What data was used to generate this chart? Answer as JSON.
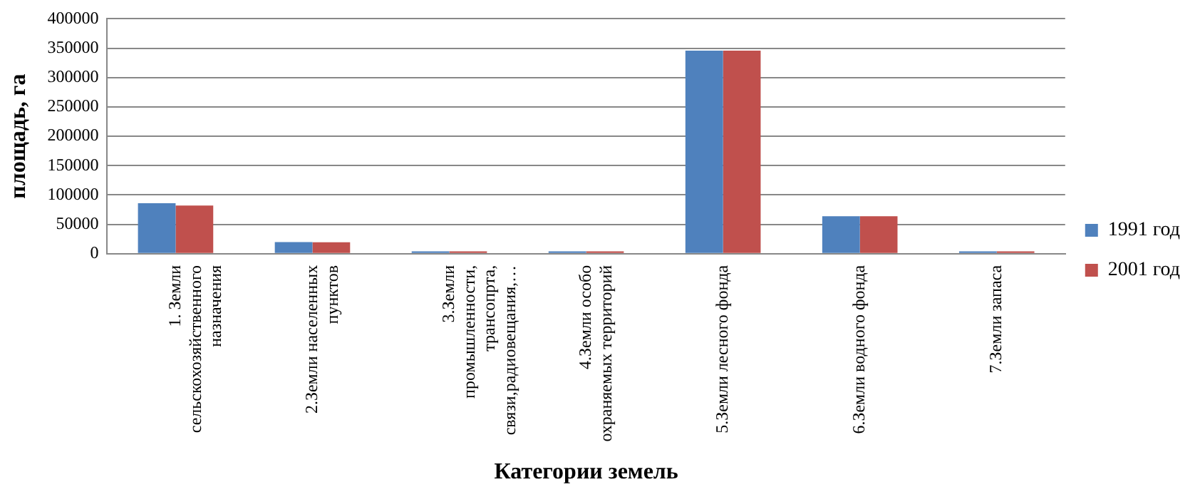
{
  "chart_data": {
    "type": "bar",
    "xlabel": "Категории земель",
    "ylabel": "площадь, га",
    "categories": [
      "1. Земли сельскохозяйственного назначения",
      "2.Земли населенных пунктов",
      "3.Земли промышленности, трансопрта, связи,радиовещания,…",
      "4.Земли особо охраняемых территорий",
      "5.Земли лесного фонда",
      "6.Земли водного фонда",
      "7.Земли запаса"
    ],
    "series": [
      {
        "name": "1991 год",
        "color": "#4f81bd",
        "values": [
          86000,
          20000,
          4000,
          4000,
          346000,
          64000,
          4000
        ]
      },
      {
        "name": "2001 год",
        "color": "#c0504d",
        "values": [
          82000,
          19500,
          4000,
          4000,
          346000,
          64000,
          4000
        ]
      }
    ],
    "ylim": [
      0,
      400000
    ],
    "yticks": [
      0,
      50000,
      100000,
      150000,
      200000,
      250000,
      300000,
      350000,
      400000
    ],
    "grid": "y",
    "legend": "right"
  }
}
